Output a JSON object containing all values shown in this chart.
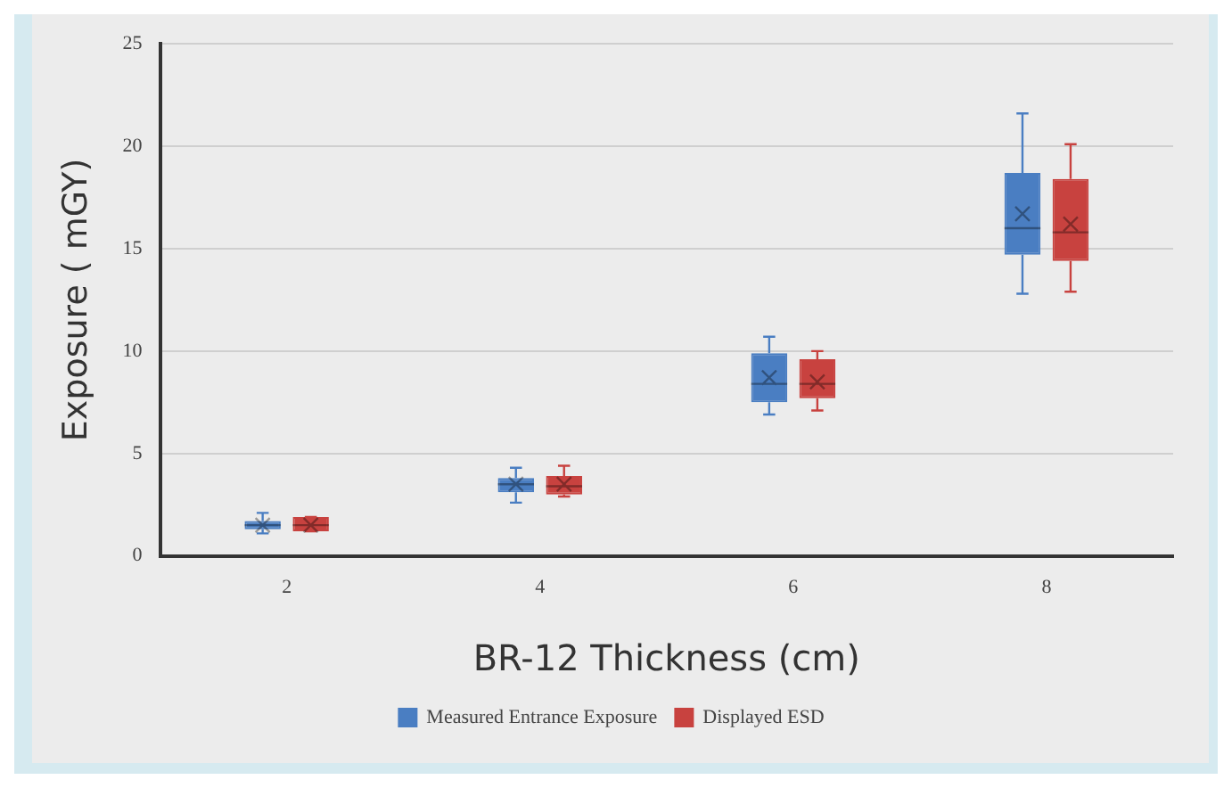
{
  "chart_data": {
    "type": "box",
    "xlabel": "BR-12 Thickness (cm)",
    "ylabel": "Exposure ( mGY)",
    "categories": [
      "2",
      "4",
      "6",
      "8"
    ],
    "series": [
      {
        "name": "Measured Entrance Exposure",
        "color": "#4a7ec2",
        "boxes": [
          {
            "low": 1.1,
            "q1": 1.3,
            "median": 1.5,
            "q3": 1.7,
            "high": 2.1,
            "mean": 1.5
          },
          {
            "low": 2.6,
            "q1": 3.1,
            "median": 3.5,
            "q3": 3.8,
            "high": 4.3,
            "mean": 3.5
          },
          {
            "low": 6.9,
            "q1": 7.5,
            "median": 8.4,
            "q3": 9.9,
            "high": 10.7,
            "mean": 8.7
          },
          {
            "low": 12.8,
            "q1": 14.7,
            "median": 16.0,
            "q3": 18.7,
            "high": 21.6,
            "mean": 16.7
          }
        ]
      },
      {
        "name": "Displayed ESD",
        "color": "#c8423f",
        "boxes": [
          {
            "low": 1.2,
            "q1": 1.2,
            "median": 1.5,
            "q3": 1.9,
            "high": 1.9,
            "mean": 1.5
          },
          {
            "low": 2.9,
            "q1": 3.0,
            "median": 3.4,
            "q3": 3.9,
            "high": 4.4,
            "mean": 3.5
          },
          {
            "low": 7.1,
            "q1": 7.7,
            "median": 8.4,
            "q3": 9.6,
            "high": 10.0,
            "mean": 8.5
          },
          {
            "low": 12.9,
            "q1": 14.4,
            "median": 15.8,
            "q3": 18.4,
            "high": 20.1,
            "mean": 16.2
          }
        ]
      }
    ],
    "ylim": [
      0,
      25
    ],
    "yticks": [
      0,
      5,
      10,
      15,
      20,
      25
    ],
    "grid": "y",
    "legend": "bottom"
  }
}
